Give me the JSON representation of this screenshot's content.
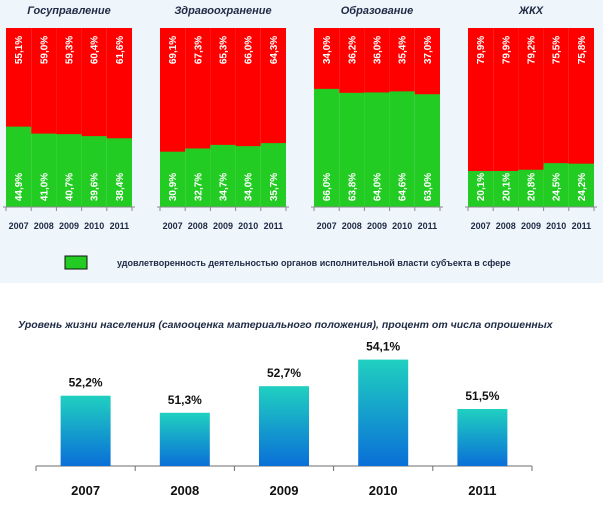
{
  "chart_data": [
    {
      "type": "bar",
      "stacked": true,
      "colors": {
        "satisfied": "#22cc22",
        "rest": "#ff0000"
      },
      "legend": {
        "label": "удовлетворенность деятельностью органов исполнительной власти субъекта в сфере"
      },
      "years": [
        "2007",
        "2008",
        "2009",
        "2010",
        "2011"
      ],
      "groups": [
        {
          "title": "Госуправление",
          "green_labels": [
            "44,9%",
            "41,0%",
            "40,7%",
            "39,6%",
            "38,4%"
          ],
          "red_labels": [
            "55,1%",
            "59,0%",
            "59,3%",
            "60,4%",
            "61,6%"
          ],
          "green": [
            44.9,
            41.0,
            40.7,
            39.6,
            38.4
          ]
        },
        {
          "title": "Здравоохранение",
          "green_labels": [
            "30,9%",
            "32,7%",
            "34,7%",
            "34,0%",
            "35,7%"
          ],
          "red_labels": [
            "69,1%",
            "67,3%",
            "65,3%",
            "66,0%",
            "64,3%"
          ],
          "green": [
            30.9,
            32.7,
            34.7,
            34.0,
            35.7
          ]
        },
        {
          "title": "Образование",
          "green_labels": [
            "66,0%",
            "63,8%",
            "64,0%",
            "64,6%",
            "63,0%"
          ],
          "red_labels": [
            "34,0%",
            "36,2%",
            "36,0%",
            "35,4%",
            "37,0%"
          ],
          "green": [
            66.0,
            63.8,
            64.0,
            64.6,
            63.0
          ]
        },
        {
          "title": "ЖКХ",
          "green_labels": [
            "20,1%",
            "20,1%",
            "20,8%",
            "24,5%",
            "24,2%"
          ],
          "red_labels": [
            "79,9%",
            "79,9%",
            "79,2%",
            "75,5%",
            "75,8%"
          ],
          "green": [
            20.1,
            20.1,
            20.8,
            24.5,
            24.2
          ]
        }
      ]
    },
    {
      "type": "bar",
      "title": "Уровень жизни населения (самооценка материального положения), процент от числа опрошенных",
      "categories": [
        "2007",
        "2008",
        "2009",
        "2010",
        "2011"
      ],
      "values": [
        52.2,
        51.3,
        52.7,
        54.1,
        51.5
      ],
      "value_labels": [
        "52,2%",
        "51,3%",
        "52,7%",
        "54,1%",
        "51,5%"
      ],
      "colors": {
        "bar_top": "#20d0c0",
        "bar_bottom": "#0a6fd8"
      }
    }
  ]
}
